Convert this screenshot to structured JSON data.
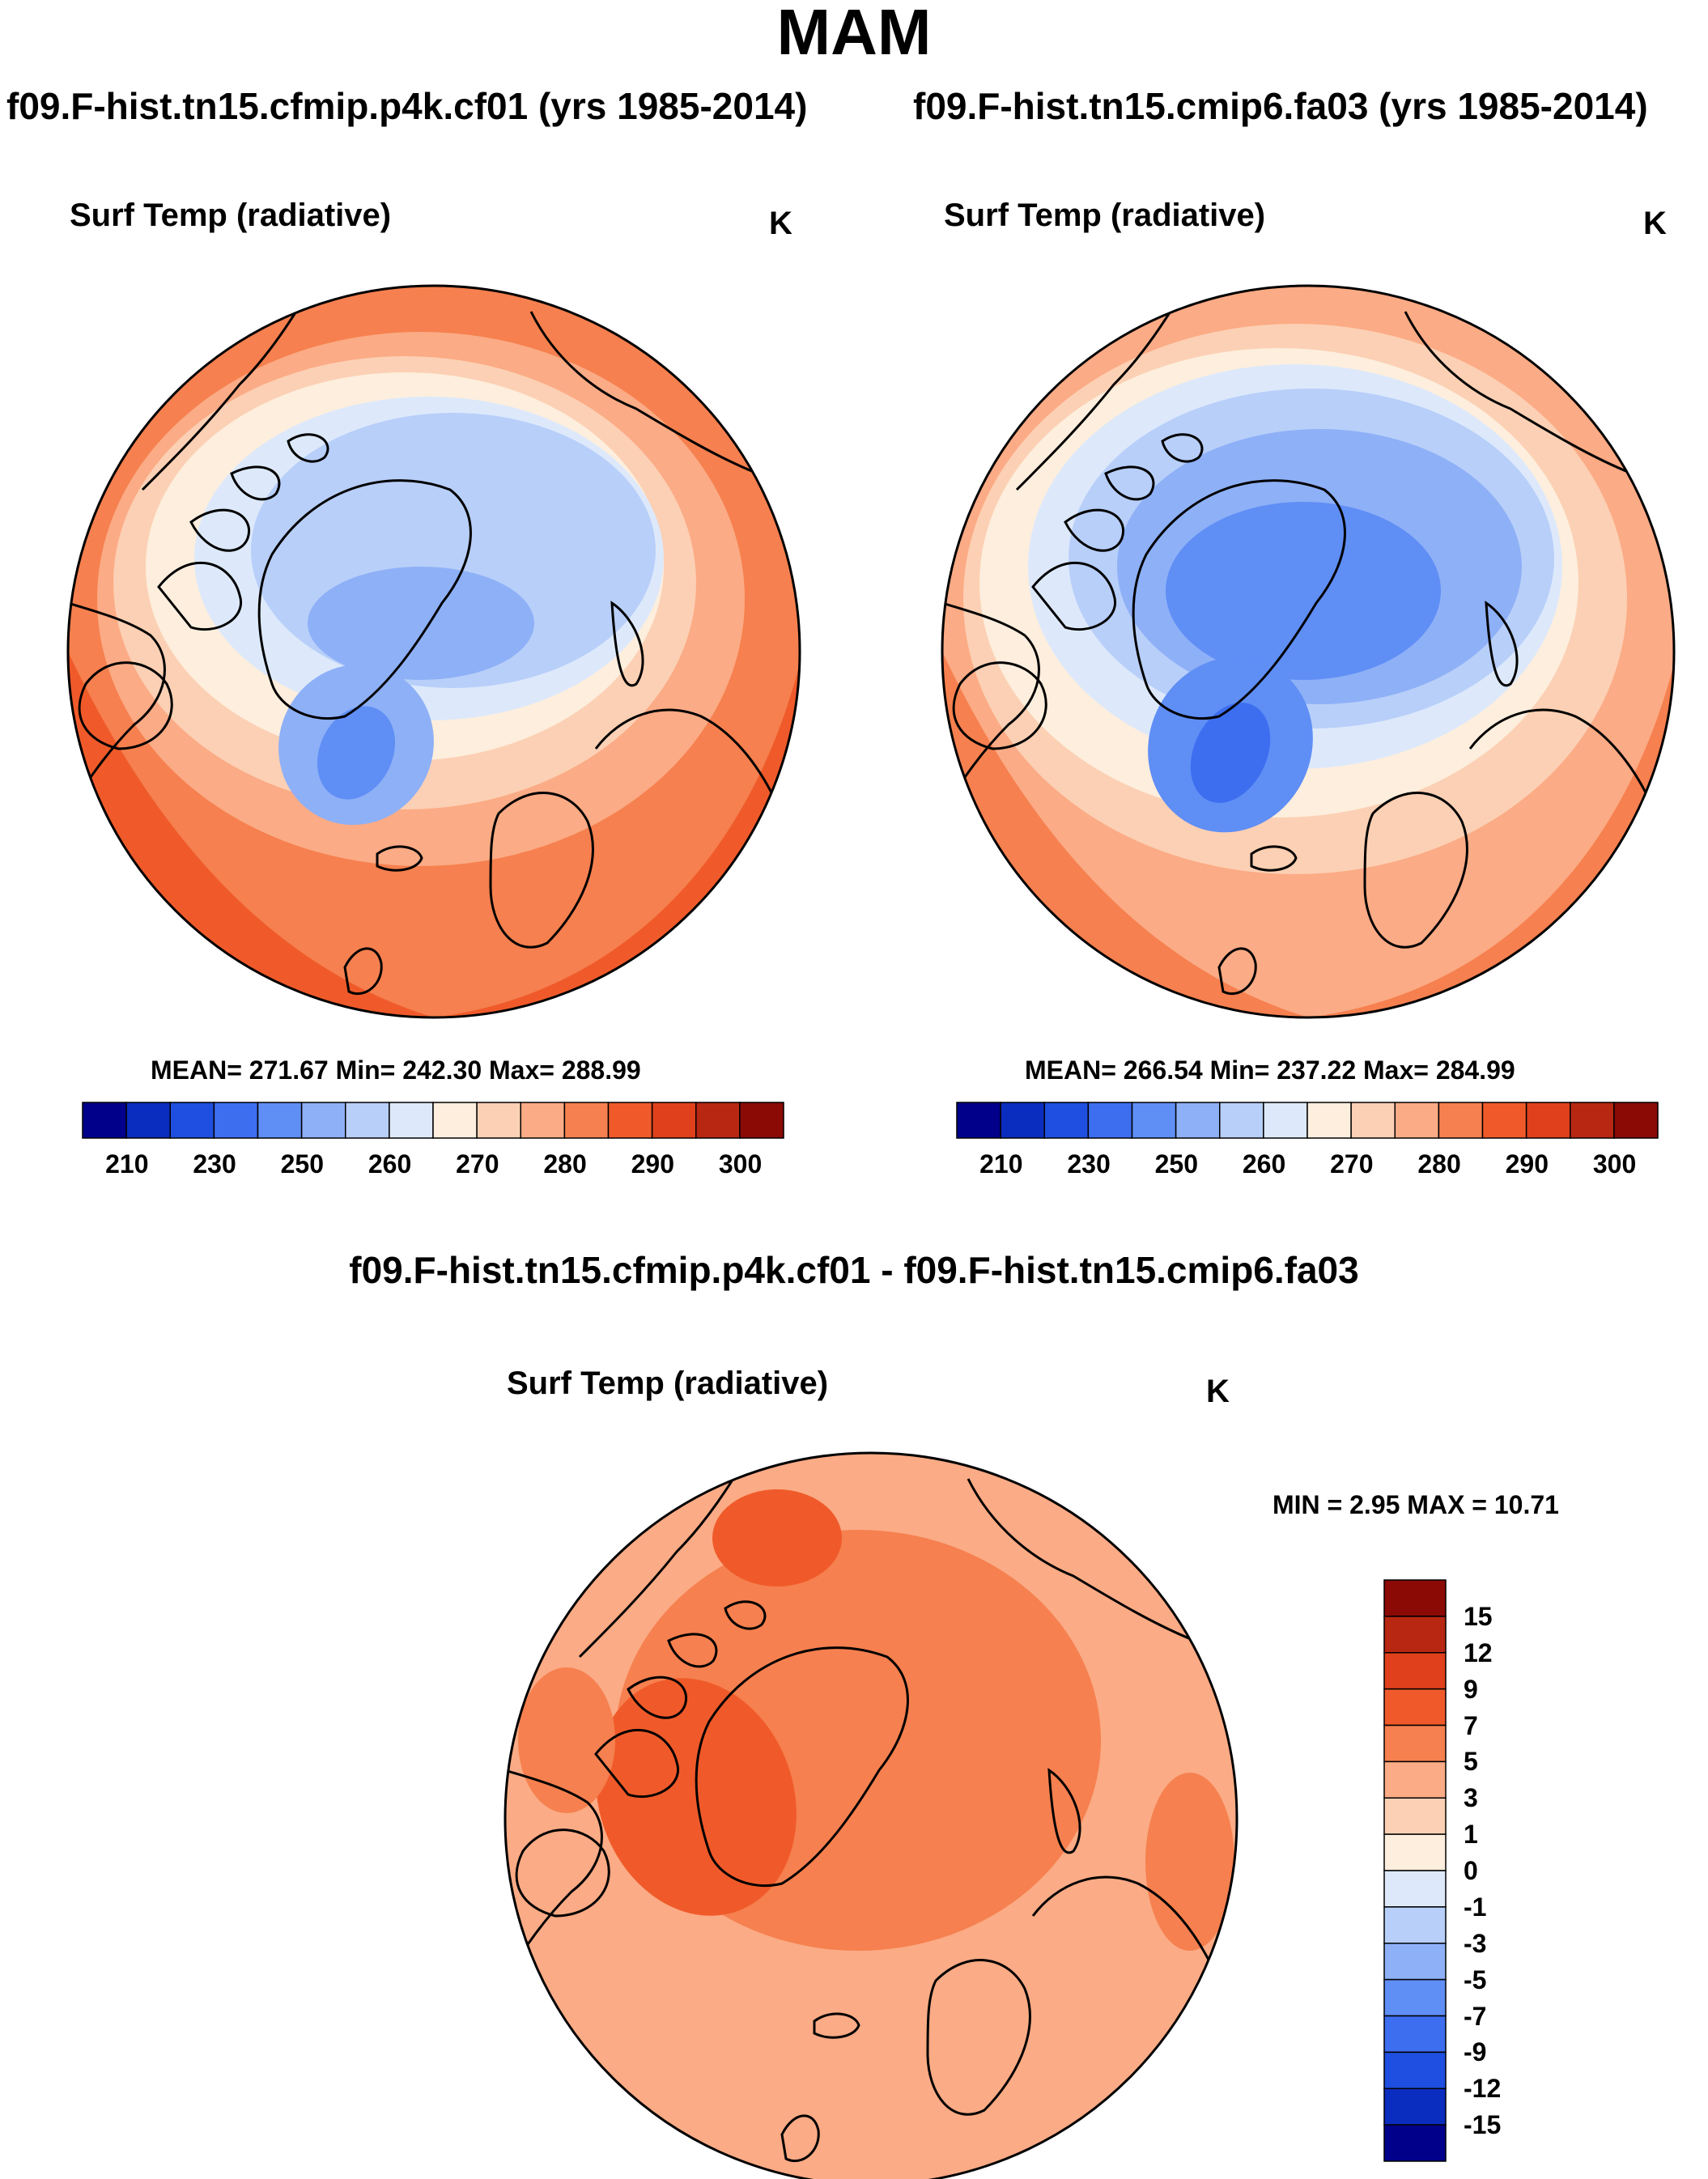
{
  "title": "MAM",
  "panels": [
    {
      "case_title": "f09.F-hist.tn15.cfmip.p4k.cf01 (yrs 1985-2014)",
      "variable": "Surf Temp (radiative)",
      "units": "K",
      "stats": "MEAN= 271.67  Min= 242.30  Max= 288.99"
    },
    {
      "case_title": "f09.F-hist.tn15.cmip6.fa03 (yrs 1985-2014)",
      "variable": "Surf Temp (radiative)",
      "units": "K",
      "stats": "MEAN= 266.54  Min= 237.22  Max= 284.99"
    }
  ],
  "difference": {
    "title": "f09.F-hist.tn15.cfmip.p4k.cf01 - f09.F-hist.tn15.cmip6.fa03",
    "variable": "Surf Temp (radiative)",
    "units": "K",
    "stats": "MIN =   2.95 MAX =  10.71"
  },
  "colorbar_abs": {
    "labels": [
      "210",
      "230",
      "250",
      "260",
      "270",
      "280",
      "290",
      "300"
    ],
    "colors": [
      "#00008b",
      "#0a2cbf",
      "#1f4fe0",
      "#3d6ef0",
      "#5f8ef5",
      "#8eb0f7",
      "#b8cff9",
      "#dde9fb",
      "#fdeedd",
      "#fcd0b4",
      "#fbab85",
      "#f6804f",
      "#f05a2a",
      "#e0401c",
      "#b82712",
      "#8b0a05"
    ]
  },
  "colorbar_diff": {
    "labels": [
      "15",
      "12",
      "9",
      "7",
      "5",
      "3",
      "1",
      "0",
      "-1",
      "-3",
      "-5",
      "-7",
      "-9",
      "-12",
      "-15"
    ],
    "colors": [
      "#8b0a05",
      "#b82712",
      "#e0401c",
      "#f05a2a",
      "#f6804f",
      "#fbab85",
      "#fcd0b4",
      "#fdeedd",
      "#dde9fb",
      "#b8cff9",
      "#8eb0f7",
      "#5f8ef5",
      "#3d6ef0",
      "#1f4fe0",
      "#0a2cbf",
      "#00008b"
    ]
  }
}
